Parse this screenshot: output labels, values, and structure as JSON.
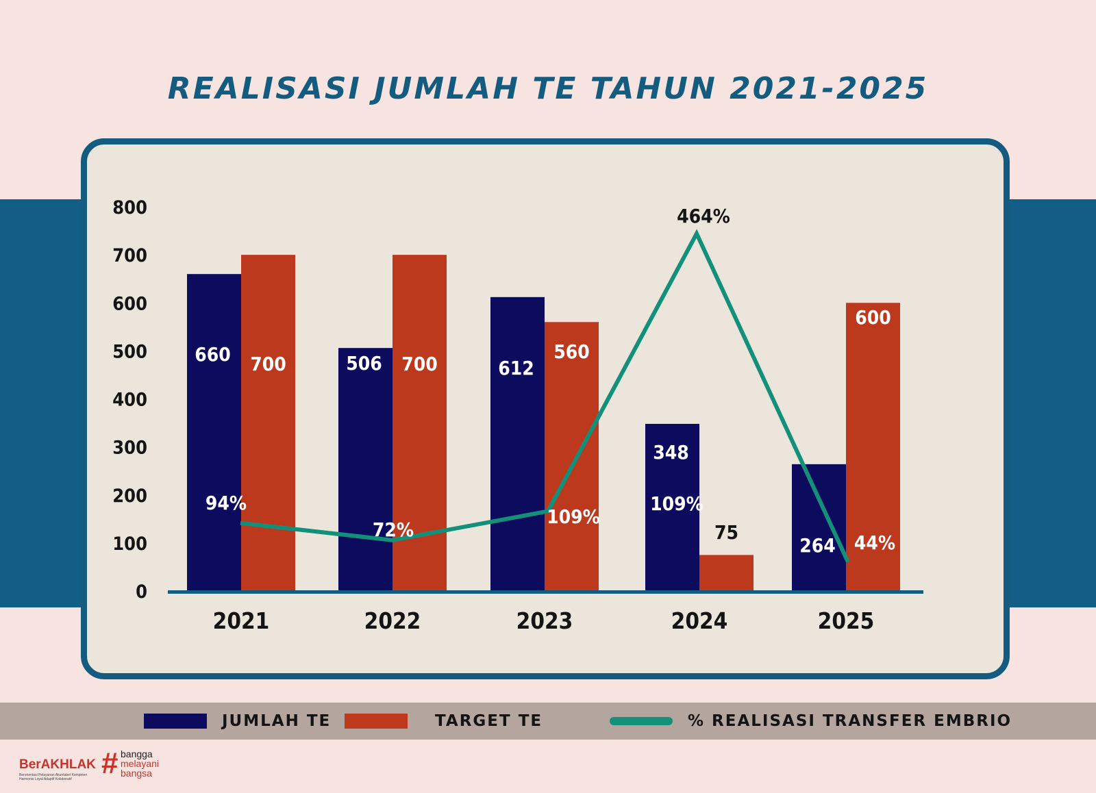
{
  "page": {
    "title": "REALISASI JUMLAH TE TAHUN 2021-2025"
  },
  "colors": {
    "jumlah": "#0d0b5e",
    "target": "#bc391e",
    "line": "#13907a",
    "axis": "#135c80",
    "text": "#141414"
  },
  "chart_data": {
    "type": "bar",
    "title": "REALISASI JUMLAH TE TAHUN 2021-2025",
    "categories": [
      "2021",
      "2022",
      "2023",
      "2024",
      "2025"
    ],
    "y_ticks": [
      "0",
      "100",
      "200",
      "300",
      "400",
      "500",
      "600",
      "700",
      "800"
    ],
    "ylim": [
      0,
      800
    ],
    "grid": false,
    "legend_position": "bottom",
    "series": [
      {
        "name": "JUMLAH TE",
        "type": "bar",
        "values": [
          660,
          506,
          612,
          348,
          264
        ],
        "labels": [
          "660",
          "506",
          "612",
          "348",
          "264"
        ]
      },
      {
        "name": "TARGET TE",
        "type": "bar",
        "values": [
          700,
          700,
          560,
          75,
          600
        ],
        "labels": [
          "700",
          "700",
          "560",
          "75",
          "600"
        ]
      },
      {
        "name": "% REALISASI TRANSFER EMBRIO",
        "type": "line",
        "values": [
          94,
          72,
          109,
          464,
          44
        ],
        "labels": [
          "94%",
          "72%",
          "109%",
          "464%",
          "44%"
        ]
      }
    ],
    "annotations": [
      "109%"
    ]
  },
  "legend": [
    {
      "label": "JUMLAH TE",
      "kind": "bar",
      "color": "#0d0b5e"
    },
    {
      "label": "TARGET TE",
      "kind": "bar",
      "color": "#bc391e"
    },
    {
      "label": "% REALISASI TRANSFER EMBRIO",
      "kind": "line",
      "color": "#13907a"
    }
  ],
  "logo": {
    "brand": "BerAKHLAK",
    "tagline": "Berorientasi Pelayanan Akuntabel Kompeten Harmonis Loyal Adaptif Kolaboratif",
    "hash": "#",
    "words": [
      "bangga",
      "melayani",
      "bangsa"
    ]
  }
}
